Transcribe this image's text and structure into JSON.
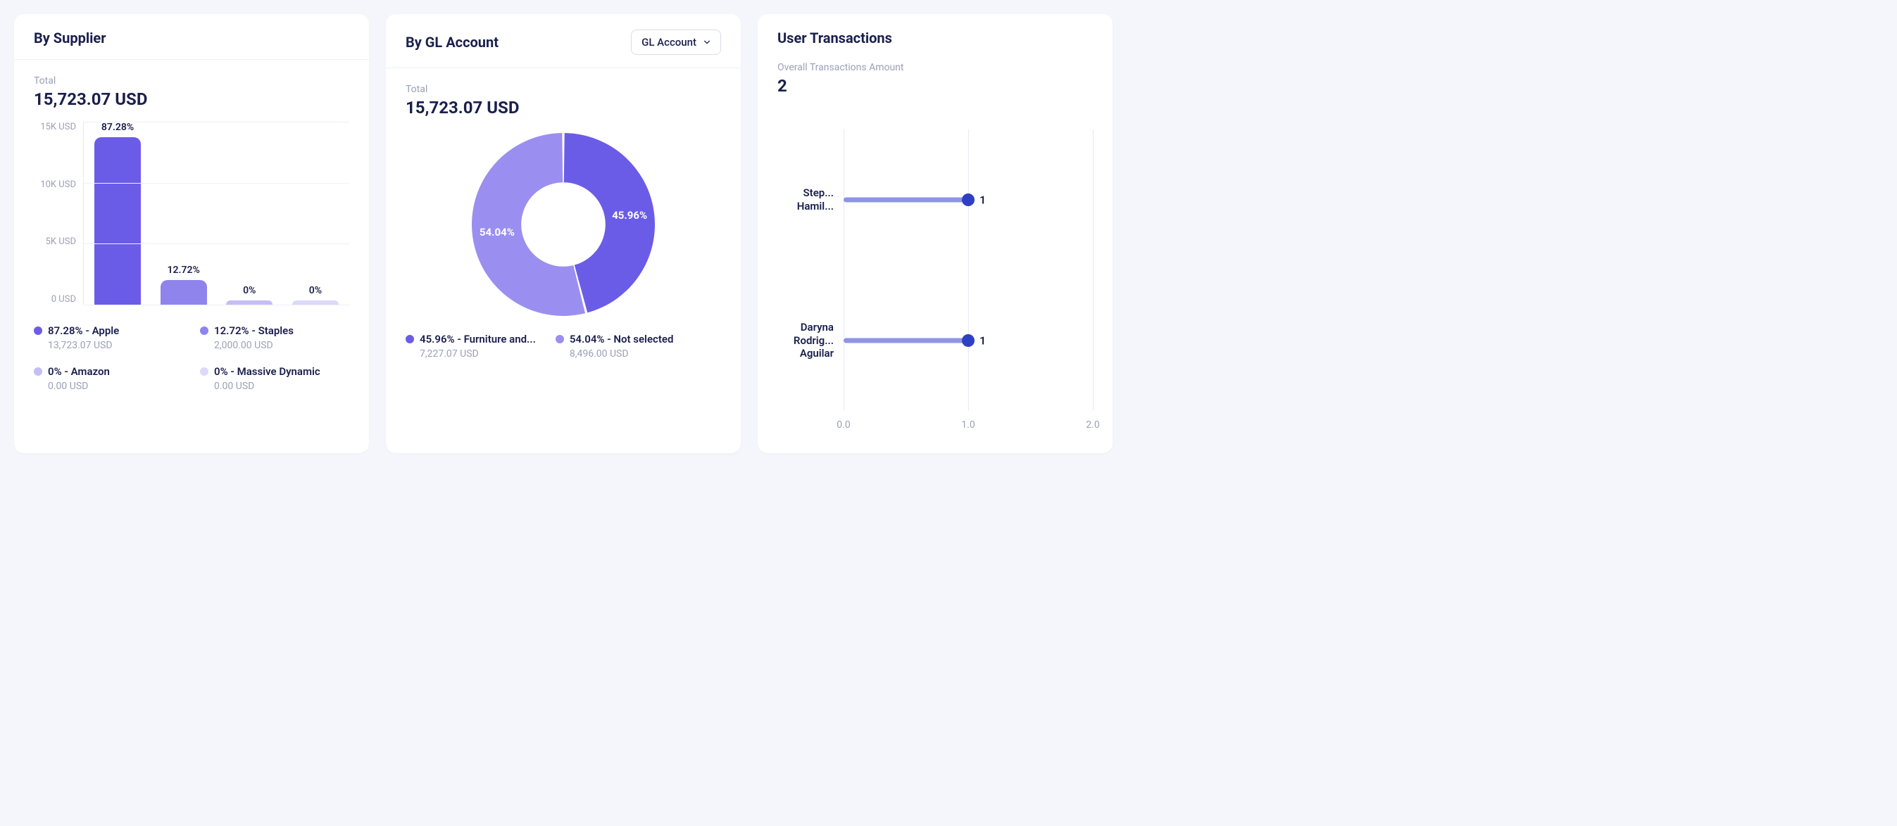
{
  "page_background": "#f5f6fb",
  "card_background": "#ffffff",
  "border_color": "#eef0f6",
  "text_primary": "#1a1f4d",
  "text_muted": "#9aa1b6",
  "card1": {
    "title": "By Supplier",
    "total_label": "Total",
    "total_value": "15,723.07 USD",
    "chart": {
      "type": "bar",
      "y_max": 15000,
      "y_ticks": [
        "15K USD",
        "10K USD",
        "5K USD",
        "0 USD"
      ],
      "bar_width_pct": 100,
      "bars": [
        {
          "label": "87.28%",
          "value": 13723.07,
          "color": "#6b5ce7"
        },
        {
          "label": "12.72%",
          "value": 2000.0,
          "color": "#8e84ec"
        },
        {
          "label": "0%",
          "value": 0,
          "color": "#c3bef5"
        },
        {
          "label": "0%",
          "value": 0,
          "color": "#dcd9f9"
        }
      ]
    },
    "legend": [
      {
        "color": "#6b5ce7",
        "label": "87.28% - Apple",
        "sub": "13,723.07 USD"
      },
      {
        "color": "#8e84ec",
        "label": "12.72% - Staples",
        "sub": "2,000.00 USD"
      },
      {
        "color": "#c3bef5",
        "label": "0% - Amazon",
        "sub": "0.00 USD"
      },
      {
        "color": "#dcd9f9",
        "label": "0% - Massive Dynamic",
        "sub": "0.00 USD"
      }
    ]
  },
  "card2": {
    "title": "By GL Account",
    "dropdown_label": "GL Account",
    "total_label": "Total",
    "total_value": "15,723.07 USD",
    "chart": {
      "type": "donut",
      "size": 260,
      "inner_ratio": 0.46,
      "gap_deg": 1.5,
      "background": "#ffffff",
      "slices": [
        {
          "pct": 45.96,
          "color": "#6b5ce7",
          "label": "45.96%"
        },
        {
          "pct": 54.04,
          "color": "#9a8ff0",
          "label": "54.04%"
        }
      ]
    },
    "legend": [
      {
        "color": "#6b5ce7",
        "label": "45.96% - Furniture and...",
        "sub": "7,227.07 USD"
      },
      {
        "color": "#9a8ff0",
        "label": "54.04% - Not selected",
        "sub": "8,496.00 USD"
      }
    ]
  },
  "card3": {
    "title": "User Transactions",
    "total_label": "Overall Transactions Amount",
    "total_value": "2",
    "chart": {
      "type": "lollipop_horizontal",
      "x_min": 0,
      "x_max": 2,
      "x_ticks": [
        "0.0",
        "1.0",
        "2.0"
      ],
      "grid_color": "#e6e9f2",
      "stem_color": "#8e95e6",
      "dot_color": "#2f3fc4",
      "rows": [
        {
          "name": "Step...\nHamil...",
          "value": 1,
          "display": "1"
        },
        {
          "name": "Daryna\nRodrig...\nAguilar",
          "value": 1,
          "display": "1"
        }
      ]
    }
  }
}
